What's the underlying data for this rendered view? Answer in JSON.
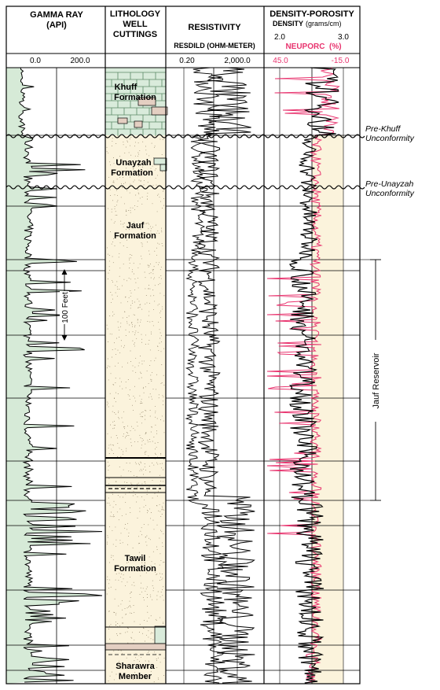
{
  "tracks": {
    "gamma": {
      "title": "GAMMA RAY",
      "unit": "(API)",
      "scale_min": "0.0",
      "scale_max": "200.0",
      "scale_bar_label": "100 Feet"
    },
    "lithology": {
      "title_line1": "LITHOLOGY",
      "title_line2": "WELL",
      "title_line3": "CUTTINGS"
    },
    "resistivity": {
      "title": "RESISTIVITY",
      "subtitle": "RESDILD (OHM-METER)",
      "scale_min": "0.20",
      "scale_max": "2,000.0"
    },
    "density": {
      "title": "DENSITY-POROSITY",
      "density_label": "DENSITY",
      "density_unit": "(grams/cm)",
      "density_min": "2.0",
      "density_max": "3.0",
      "neuporc_label": "NEUPORC  (%)",
      "neuporc_min": "45.0",
      "neuporc_max": "-15.0"
    }
  },
  "formations": {
    "khuff_1": "Khuff",
    "khuff_2": "Formation",
    "unayzah_1": "Unayzah",
    "unayzah_2": "Formation",
    "jauf_1": "Jauf",
    "jauf_2": "Formation",
    "tawil_1": "Tawil",
    "tawil_2": "Formation",
    "sharawra_1": "Sharawra",
    "sharawra_2": "Member"
  },
  "annotations": {
    "pre_khuff_1": "Pre-Khuff",
    "pre_khuff_2": "Unconformity",
    "pre_unayzah_1": "Pre-Unayzah",
    "pre_unayzah_2": "Unconformity",
    "reservoir": "Jauf Reservoir"
  },
  "colors": {
    "gamma_fill": "#d6ead7",
    "sand_fill": "#fbf3dc",
    "khuff_fill": "#d9ebdb",
    "neuporc": "#e8336e",
    "line": "#000000"
  }
}
